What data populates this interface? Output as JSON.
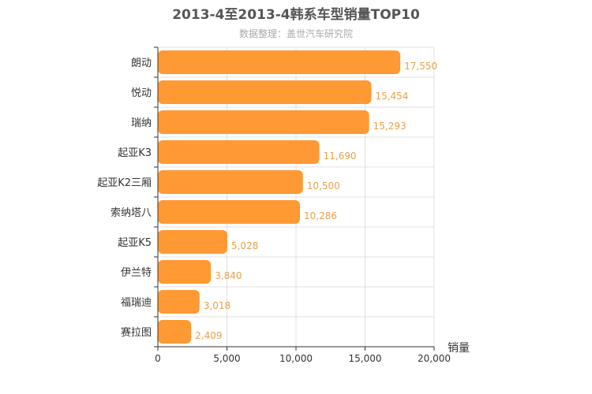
{
  "chart_data": {
    "type": "bar",
    "orientation": "horizontal",
    "title": "2013-4至2013-4韩系车型销量TOP10",
    "subtitle": "数据整理：盖世汽车研究院",
    "categories": [
      "朗动",
      "悦动",
      "瑞纳",
      "起亚K3",
      "起亚K2三厢",
      "索纳塔八",
      "起亚K5",
      "伊兰特",
      "福瑞迪",
      "赛拉图"
    ],
    "values": [
      17550,
      15454,
      15293,
      11690,
      10500,
      10286,
      5028,
      3840,
      3018,
      2409
    ],
    "value_labels": [
      "17,550",
      "15,454",
      "15,293",
      "11,690",
      "10,500",
      "10,286",
      "5,028",
      "3,840",
      "3,018",
      "2,409"
    ],
    "xlabel": "销量",
    "xlim": [
      0,
      20000
    ],
    "ticks": [
      0,
      5000,
      10000,
      15000,
      20000
    ],
    "tick_labels": [
      "0",
      "5,000",
      "10,000",
      "15,000",
      "20,000"
    ],
    "bar_color": "#ff9933",
    "value_label_color": "#e8a04a",
    "grid": true
  }
}
